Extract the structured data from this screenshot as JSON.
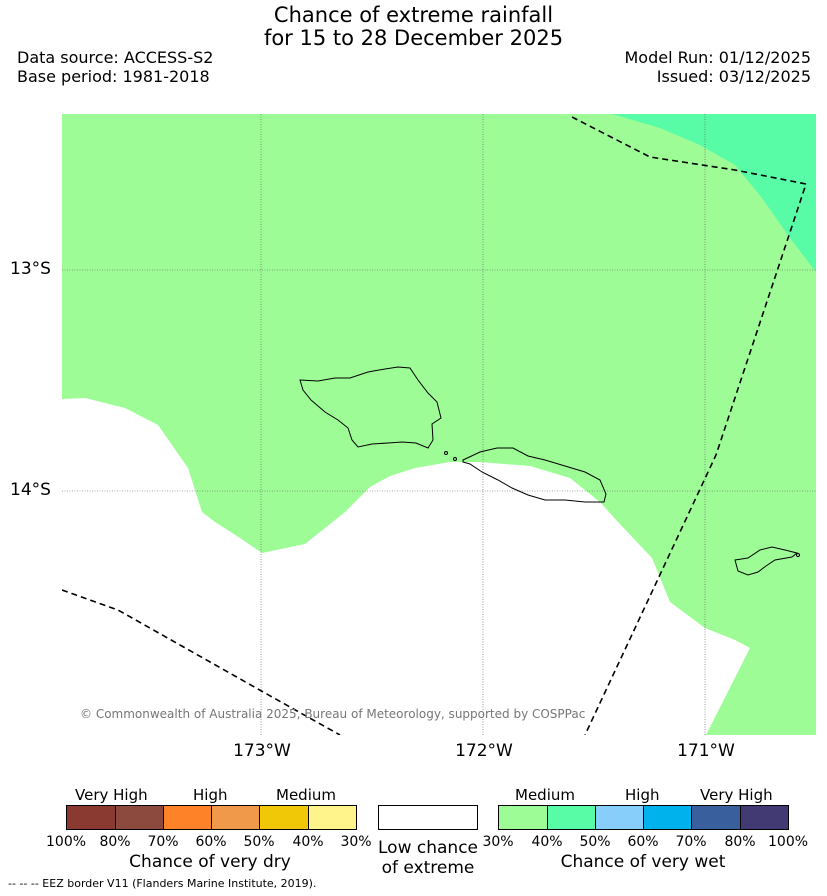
{
  "header": {
    "title_line1": "Chance of extreme rainfall",
    "title_line2": "for 15 to 28 December 2025",
    "data_source": "Data source: ACCESS-S2",
    "base_period": "Base period: 1981-2018",
    "model_run": "Model Run: 01/12/2025",
    "issued": "Issued: 03/12/2025"
  },
  "map": {
    "lat_labels": [
      "13°S",
      "14°S"
    ],
    "lon_labels": [
      "173°W",
      "172°W",
      "171°W"
    ],
    "copyright": "© Commonwealth of Australia 2025, Bureau of Meteorology, supported by COSPPac",
    "colors": {
      "medium_wet": "#9efc96",
      "high_wet": "#58fba6",
      "no_chance": "#ffffff"
    }
  },
  "legend": {
    "dry": {
      "categories": [
        "Very High",
        "High",
        "Medium"
      ],
      "ticks": [
        "100%",
        "80%",
        "70%",
        "60%",
        "50%",
        "40%",
        "30%"
      ],
      "caption": "Chance of very dry",
      "colors": [
        "#8b3a32",
        "#8b4a3d",
        "#fe8227",
        "#f0994a",
        "#f0c808",
        "#fff48c"
      ]
    },
    "low": {
      "caption_line1": "Low chance",
      "caption_line2": "of extreme",
      "color": "#ffffff"
    },
    "wet": {
      "categories": [
        "Medium",
        "High",
        "Very High"
      ],
      "ticks": [
        "30%",
        "40%",
        "50%",
        "60%",
        "70%",
        "80%",
        "100%"
      ],
      "caption": "Chance of very wet",
      "colors": [
        "#9efc96",
        "#58fba6",
        "#88cefa",
        "#00b2ec",
        "#3a5f9d",
        "#423a72"
      ]
    }
  },
  "footnote": "--  --  -- EEZ border V11 (Flanders Marine Institute, 2019)."
}
